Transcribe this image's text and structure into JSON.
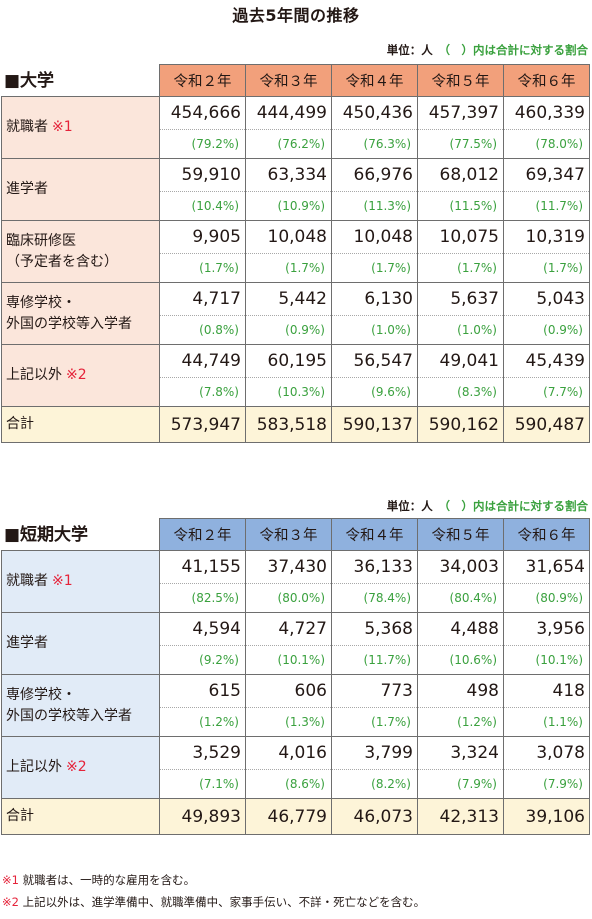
{
  "title": "過去5年間の推移",
  "unit_note": {
    "unit": "単位：人",
    "paren": "（　）内は合計に対する割合"
  },
  "years": [
    "令和２年",
    "令和３年",
    "令和４年",
    "令和５年",
    "令和６年"
  ],
  "university": {
    "label": "■大学",
    "rows": [
      {
        "label": [
          "就職者"
        ],
        "mark": "※1",
        "values": [
          "454,666",
          "444,499",
          "450,436",
          "457,397",
          "460,339"
        ],
        "pcts": [
          "(79.2%)",
          "(76.2%)",
          "(76.3%)",
          "(77.5%)",
          "(78.0%)"
        ]
      },
      {
        "label": [
          "進学者"
        ],
        "mark": "",
        "values": [
          "59,910",
          "63,334",
          "66,976",
          "68,012",
          "69,347"
        ],
        "pcts": [
          "(10.4%)",
          "(10.9%)",
          "(11.3%)",
          "(11.5%)",
          "(11.7%)"
        ]
      },
      {
        "label": [
          "臨床研修医",
          "（予定者を含む）"
        ],
        "mark": "",
        "values": [
          "9,905",
          "10,048",
          "10,048",
          "10,075",
          "10,319"
        ],
        "pcts": [
          "(1.7%)",
          "(1.7%)",
          "(1.7%)",
          "(1.7%)",
          "(1.7%)"
        ]
      },
      {
        "label": [
          "専修学校・",
          "外国の学校等入学者"
        ],
        "mark": "",
        "values": [
          "4,717",
          "5,442",
          "6,130",
          "5,637",
          "5,043"
        ],
        "pcts": [
          "(0.8%)",
          "(0.9%)",
          "(1.0%)",
          "(1.0%)",
          "(0.9%)"
        ]
      },
      {
        "label": [
          "上記以外"
        ],
        "mark": "※2",
        "values": [
          "44,749",
          "60,195",
          "56,547",
          "49,041",
          "45,439"
        ],
        "pcts": [
          "(7.8%)",
          "(10.3%)",
          "(9.6%)",
          "(8.3%)",
          "(7.7%)"
        ]
      }
    ],
    "total": {
      "label": "合計",
      "values": [
        "573,947",
        "583,518",
        "590,137",
        "590,162",
        "590,487"
      ]
    }
  },
  "junior_college": {
    "label": "■短期大学",
    "rows": [
      {
        "label": [
          "就職者"
        ],
        "mark": "※1",
        "values": [
          "41,155",
          "37,430",
          "36,133",
          "34,003",
          "31,654"
        ],
        "pcts": [
          "(82.5%)",
          "(80.0%)",
          "(78.4%)",
          "(80.4%)",
          "(80.9%)"
        ]
      },
      {
        "label": [
          "進学者"
        ],
        "mark": "",
        "values": [
          "4,594",
          "4,727",
          "5,368",
          "4,488",
          "3,956"
        ],
        "pcts": [
          "(9.2%)",
          "(10.1%)",
          "(11.7%)",
          "(10.6%)",
          "(10.1%)"
        ]
      },
      {
        "label": [
          "専修学校・",
          "外国の学校等入学者"
        ],
        "mark": "",
        "values": [
          "615",
          "606",
          "773",
          "498",
          "418"
        ],
        "pcts": [
          "(1.2%)",
          "(1.3%)",
          "(1.7%)",
          "(1.2%)",
          "(1.1%)"
        ]
      },
      {
        "label": [
          "上記以外"
        ],
        "mark": "※2",
        "values": [
          "3,529",
          "4,016",
          "3,799",
          "3,324",
          "3,078"
        ],
        "pcts": [
          "(7.1%)",
          "(8.6%)",
          "(8.2%)",
          "(7.9%)",
          "(7.9%)"
        ]
      }
    ],
    "total": {
      "label": "合計",
      "values": [
        "49,893",
        "46,779",
        "46,073",
        "42,313",
        "39,106"
      ]
    }
  },
  "notes": [
    {
      "mark": "※1",
      "text": " 就職者は、一時的な雇用を含む。"
    },
    {
      "mark": "※2",
      "text": " 上記以外は、進学準備中、就職準備中、家事手伝い、不詳・死亡などを含む。"
    }
  ]
}
